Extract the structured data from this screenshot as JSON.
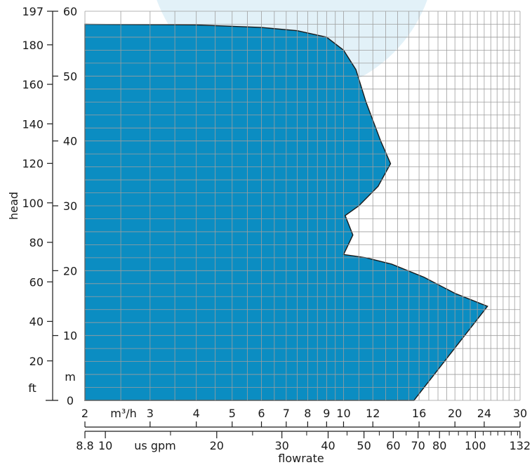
{
  "chart_data": {
    "type": "area",
    "x_units": {
      "metric": "m³/h",
      "imperial": "us gpm"
    },
    "y_units": {
      "metric": "m",
      "imperial": "ft"
    },
    "xlabel": "flowrate",
    "ylabel": "head",
    "x_scale": "log",
    "xlim_m3h": [
      2,
      30
    ],
    "ylim_m": [
      0,
      60
    ],
    "ylim_ft": [
      0,
      197
    ],
    "x_ticks_m3h": [
      "2",
      "3",
      "4",
      "5",
      "6",
      "7",
      "8",
      "9",
      "10",
      "12",
      "16",
      "20",
      "24",
      "30"
    ],
    "x_ticks_gpm": [
      "8.8",
      "10",
      "20",
      "30",
      "40",
      "50",
      "60",
      "70",
      "80",
      "100",
      "132"
    ],
    "y_ticks_m": [
      "0",
      "10",
      "20",
      "30",
      "40",
      "50",
      "60"
    ],
    "y_ticks_ft": [
      "20",
      "40",
      "60",
      "80",
      "100",
      "120",
      "140",
      "160",
      "180",
      "197"
    ],
    "grid": true,
    "envelope": {
      "x_m3h": [
        2,
        4,
        6,
        7.5,
        9,
        10,
        10.8,
        11.5,
        12.6,
        13.4,
        12.4,
        11.0,
        10.1,
        10.6,
        10.1,
        10.0,
        11.5,
        13.5,
        16.5,
        20.0,
        24.5,
        15.5,
        2
      ],
      "y_m": [
        58,
        57.9,
        57.5,
        57,
        56,
        54,
        51,
        46,
        40,
        36.5,
        33,
        30,
        28.5,
        25.5,
        23,
        22.5,
        22,
        21,
        19,
        16.5,
        14.5,
        0,
        0
      ]
    },
    "colors": {
      "fill": "#0b8dc2",
      "grid": "#9e9e9e",
      "background_circle": "#e2f1f8",
      "outline": "#1a1a1a"
    }
  }
}
